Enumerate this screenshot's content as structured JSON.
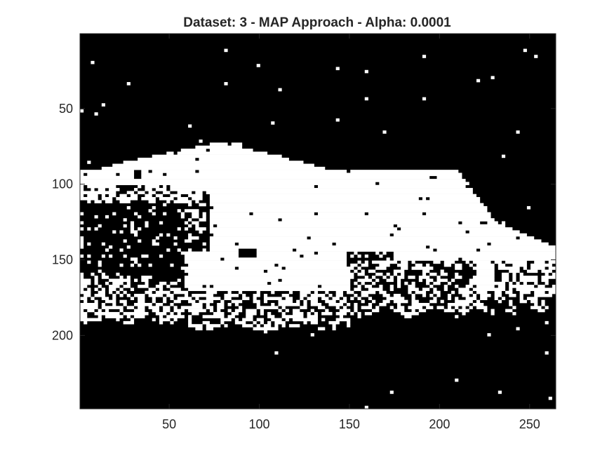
{
  "chart_data": {
    "type": "heatmap",
    "title": "Dataset: 3 - MAP Approach - Alpha: 0.0001",
    "xlabel": "",
    "ylabel": "",
    "colormap": "binary",
    "colors": {
      "foreground": "#ffffff",
      "background": "#000000",
      "text": "#262626",
      "axis": "#262626"
    },
    "xlim": [
      0.5,
      264.5
    ],
    "ylim": [
      0.5,
      248.5
    ],
    "y_reversed": true,
    "xticks": [
      50,
      100,
      150,
      200,
      250
    ],
    "yticks": [
      50,
      100,
      150,
      200
    ],
    "xtick_labels": [
      "50",
      "100",
      "150",
      "200",
      "250"
    ],
    "ytick_labels": [
      "50",
      "100",
      "150",
      "200"
    ],
    "image_size": {
      "columns": 264,
      "rows": 248
    },
    "grid": false,
    "legend": "none"
  }
}
